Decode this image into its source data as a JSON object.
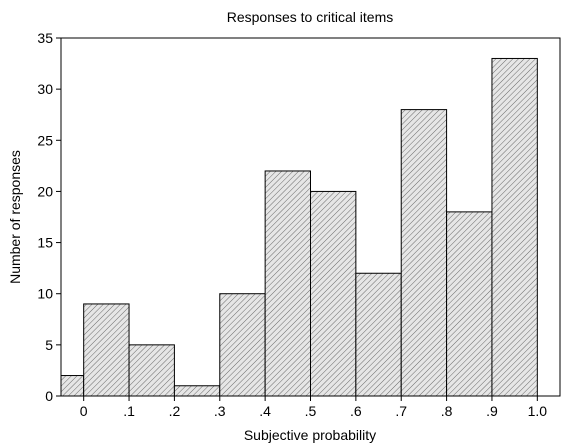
{
  "chart_data": {
    "type": "bar",
    "title": "Responses to critical items",
    "xlabel": "Subjective probability",
    "ylabel": "Number of responses",
    "x_tick_labels": [
      "0",
      ".1",
      ".2",
      ".3",
      ".4",
      ".5",
      ".6",
      ".7",
      ".8",
      ".9",
      "1.0"
    ],
    "bins": [
      {
        "left": -0.05,
        "right": 0.0,
        "value": 2
      },
      {
        "left": 0.0,
        "right": 0.1,
        "value": 9
      },
      {
        "left": 0.1,
        "right": 0.2,
        "value": 5
      },
      {
        "left": 0.2,
        "right": 0.3,
        "value": 1
      },
      {
        "left": 0.3,
        "right": 0.4,
        "value": 10
      },
      {
        "left": 0.4,
        "right": 0.5,
        "value": 22
      },
      {
        "left": 0.5,
        "right": 0.6,
        "value": 20
      },
      {
        "left": 0.6,
        "right": 0.7,
        "value": 12
      },
      {
        "left": 0.7,
        "right": 0.8,
        "value": 28
      },
      {
        "left": 0.8,
        "right": 0.9,
        "value": 18
      },
      {
        "left": 0.9,
        "right": 1.0,
        "value": 33
      }
    ],
    "xlim": [
      -0.05,
      1.05
    ],
    "ylim": [
      0,
      35
    ],
    "y_ticks": [
      0,
      5,
      10,
      15,
      20,
      25,
      30,
      35
    ],
    "bar_style": "diagonal-hatch",
    "bar_color": "#d8d8d8",
    "grid": false,
    "legend": "none"
  }
}
